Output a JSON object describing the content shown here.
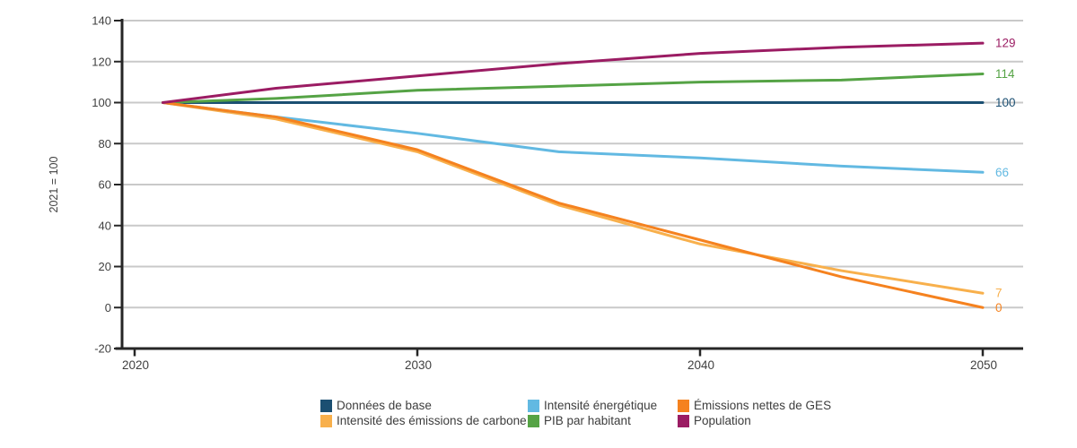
{
  "chart_data": {
    "type": "line",
    "title": "",
    "xlabel": "",
    "ylabel": "2021 = 100",
    "x": [
      2021,
      2025,
      2030,
      2035,
      2040,
      2045,
      2050
    ],
    "xlim": [
      2020,
      2051.5
    ],
    "ylim": [
      -20,
      140
    ],
    "x_ticks": [
      2020,
      2030,
      2040,
      2050
    ],
    "y_ticks": [
      140,
      120,
      100,
      80,
      60,
      40,
      20,
      0,
      -20
    ],
    "grid": true,
    "legend_position": "bottom",
    "series": [
      {
        "name": "Données de base",
        "color": "#1b4f72",
        "values": [
          100,
          100,
          100,
          100,
          100,
          100,
          100
        ],
        "end_label": "100"
      },
      {
        "name": "Intensité des émissions de carbone",
        "color": "#f8b04c",
        "values": [
          100,
          92,
          76,
          50,
          31,
          18,
          7
        ],
        "end_label": "7"
      },
      {
        "name": "Intensité énergétique",
        "color": "#62b9e2",
        "values": [
          100,
          93,
          85,
          76,
          73,
          69,
          66
        ],
        "end_label": "66"
      },
      {
        "name": "PIB par habitant",
        "color": "#55a345",
        "values": [
          100,
          102,
          106,
          108,
          110,
          111,
          114
        ],
        "end_label": "114"
      },
      {
        "name": "Émissions nettes de GES",
        "color": "#f5821f",
        "values": [
          100,
          93,
          77,
          51,
          33,
          15,
          0
        ],
        "end_label": "0"
      },
      {
        "name": "Population",
        "color": "#9b1c63",
        "values": [
          100,
          107,
          113,
          119,
          124,
          127,
          129
        ],
        "end_label": "129"
      }
    ]
  },
  "legend": {
    "items": [
      {
        "label": "Données de base",
        "color": "#1b4f72"
      },
      {
        "label": "Intensité énergétique",
        "color": "#62b9e2"
      },
      {
        "label": "Émissions nettes de GES",
        "color": "#f5821f"
      },
      {
        "label": "Intensité des émissions de carbone",
        "color": "#f8b04c"
      },
      {
        "label": "PIB par habitant",
        "color": "#55a345"
      },
      {
        "label": "Population",
        "color": "#9b1c63"
      }
    ]
  },
  "colors": {
    "axis": "#262626",
    "gridline": "#c9c9c9",
    "tick_label": "#404040",
    "background": "#ffffff"
  }
}
